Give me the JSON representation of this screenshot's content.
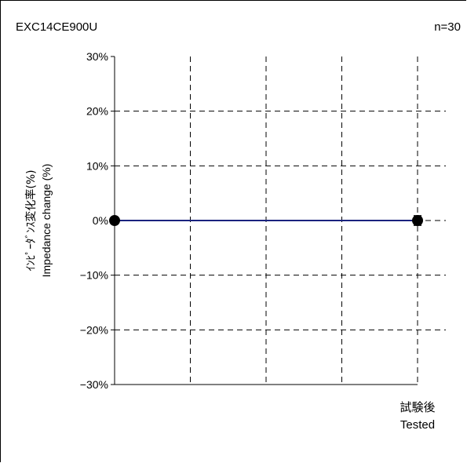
{
  "header": {
    "part_number": "EXC14CE900U",
    "sample_count": "n=30"
  },
  "chart_data": {
    "type": "line",
    "categories": [
      "",
      "試験後\nTested"
    ],
    "x_tick_labels": [
      {
        "line1": "",
        "line2": ""
      },
      {
        "line1": "試験後",
        "line2": "Tested"
      }
    ],
    "series": [
      {
        "values": [
          0,
          0
        ],
        "error": [
          0,
          0.3
        ]
      }
    ],
    "ylabel_jp": "ｲﾝﾋﾟｰﾀﾞﾝｽ変化率(%)",
    "ylabel_en": "Impedance change (%)",
    "ylim": [
      -30,
      30
    ],
    "yticks": [
      30,
      20,
      10,
      0,
      -10,
      -20,
      -30
    ],
    "ytick_labels": [
      "30%",
      "20%",
      "10%",
      "0%",
      "−10%",
      "−20%",
      "−30%"
    ],
    "grid": true,
    "line_color": "#1a237e",
    "marker_color": "#000000"
  }
}
